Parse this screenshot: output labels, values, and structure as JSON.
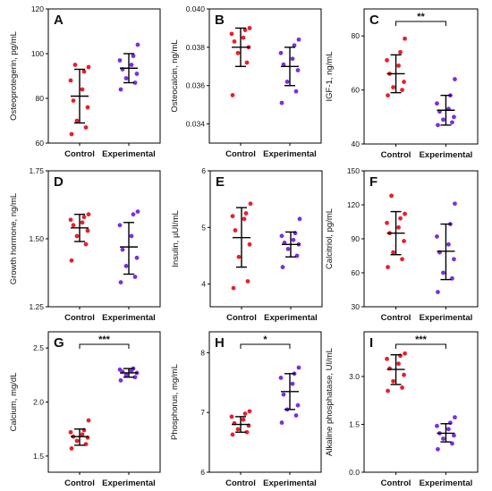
{
  "chart_data": [
    {
      "panel": "A",
      "type": "scatter",
      "ylabel": "Osteoprotegerin, pg/mL",
      "categories": [
        "Control",
        "Experimental"
      ],
      "ylim": [
        60,
        120
      ],
      "yticks": [
        "60",
        "80",
        "100",
        "120"
      ],
      "colors": [
        "#e8202a",
        "#7b2fe0"
      ],
      "groups": [
        {
          "name": "Control",
          "mean": 81,
          "sd_low": 69,
          "sd_high": 93,
          "points": [
            64,
            67,
            70,
            76,
            79,
            84,
            88,
            92,
            94,
            95
          ]
        },
        {
          "name": "Experimental",
          "mean": 93.5,
          "sd_low": 87,
          "sd_high": 100,
          "points": [
            84,
            87,
            89,
            91,
            93,
            95,
            97,
            99,
            104
          ]
        }
      ],
      "significance": ""
    },
    {
      "panel": "B",
      "type": "scatter",
      "ylabel": "Osteocalcin, ng/mL",
      "categories": [
        "Control",
        "Experimental"
      ],
      "ylim": [
        0.033,
        0.04
      ],
      "yticks": [
        "0.034",
        "0.036",
        "0.038",
        "0.040"
      ],
      "colors": [
        "#e8202a",
        "#7b2fe0"
      ],
      "groups": [
        {
          "name": "Control",
          "mean": 0.038,
          "sd_low": 0.037,
          "sd_high": 0.039,
          "points": [
            0.0355,
            0.0372,
            0.0377,
            0.038,
            0.0383,
            0.0385,
            0.0387,
            0.0389,
            0.039
          ]
        },
        {
          "name": "Experimental",
          "mean": 0.037,
          "sd_low": 0.036,
          "sd_high": 0.038,
          "points": [
            0.0351,
            0.0357,
            0.0362,
            0.0368,
            0.0371,
            0.0374,
            0.0377,
            0.0381,
            0.0384
          ]
        }
      ],
      "significance": ""
    },
    {
      "panel": "C",
      "type": "scatter",
      "ylabel": "IGF-1, ng/mL",
      "categories": [
        "Control",
        "Experimental"
      ],
      "ylim": [
        40,
        90
      ],
      "yticks": [
        "40",
        "60",
        "80"
      ],
      "colors": [
        "#e8202a",
        "#7b2fe0"
      ],
      "groups": [
        {
          "name": "Control",
          "mean": 66,
          "sd_low": 59,
          "sd_high": 73,
          "points": [
            58,
            60,
            61,
            63,
            66,
            69,
            71,
            74,
            79
          ]
        },
        {
          "name": "Experimental",
          "mean": 52.5,
          "sd_low": 47,
          "sd_high": 58,
          "points": [
            47,
            48,
            49,
            50,
            52,
            53,
            55,
            58,
            64
          ]
        }
      ],
      "significance": "**"
    },
    {
      "panel": "D",
      "type": "scatter",
      "ylabel": "Growth hormone, ng/mL",
      "categories": [
        "Control",
        "Experimental"
      ],
      "ylim": [
        1.25,
        1.75
      ],
      "yticks": [
        "1.25",
        "1.50",
        "1.75"
      ],
      "colors": [
        "#e8202a",
        "#7b2fe0"
      ],
      "groups": [
        {
          "name": "Control",
          "mean": 1.54,
          "sd_low": 1.49,
          "sd_high": 1.59,
          "points": [
            1.42,
            1.48,
            1.51,
            1.53,
            1.55,
            1.56,
            1.57,
            1.58,
            1.59
          ]
        },
        {
          "name": "Experimental",
          "mean": 1.47,
          "sd_low": 1.37,
          "sd_high": 1.56,
          "points": [
            1.34,
            1.36,
            1.4,
            1.43,
            1.46,
            1.51,
            1.55,
            1.59,
            1.6
          ]
        }
      ],
      "significance": ""
    },
    {
      "panel": "E",
      "type": "scatter",
      "ylabel": "Insulin, µUI/mL",
      "categories": [
        "Control",
        "Experimental"
      ],
      "ylim": [
        3.6,
        6.0
      ],
      "yticks": [
        "4",
        "5",
        "6"
      ],
      "colors": [
        "#e8202a",
        "#7b2fe0"
      ],
      "groups": [
        {
          "name": "Control",
          "mean": 4.82,
          "sd_low": 4.3,
          "sd_high": 5.35,
          "points": [
            3.93,
            4.05,
            4.48,
            4.7,
            4.95,
            5.15,
            5.2,
            5.25,
            5.42
          ]
        },
        {
          "name": "Experimental",
          "mean": 4.7,
          "sd_low": 4.48,
          "sd_high": 4.92,
          "points": [
            4.3,
            4.5,
            4.62,
            4.7,
            4.73,
            4.78,
            4.85,
            4.9,
            5.15
          ]
        }
      ],
      "significance": ""
    },
    {
      "panel": "F",
      "type": "scatter",
      "ylabel": "Calcitriol, pg/mL",
      "categories": [
        "Control",
        "Experimental"
      ],
      "ylim": [
        30,
        150
      ],
      "yticks": [
        "30",
        "60",
        "90",
        "120",
        "150"
      ],
      "colors": [
        "#e8202a",
        "#7b2fe0"
      ],
      "groups": [
        {
          "name": "Control",
          "mean": 95,
          "sd_low": 76,
          "sd_high": 114,
          "points": [
            65,
            72,
            78,
            88,
            95,
            100,
            104,
            108,
            112,
            128
          ]
        },
        {
          "name": "Experimental",
          "mean": 79,
          "sd_low": 54,
          "sd_high": 103,
          "points": [
            43,
            55,
            60,
            72,
            78,
            85,
            92,
            103,
            121
          ]
        }
      ],
      "significance": ""
    },
    {
      "panel": "G",
      "type": "scatter",
      "ylabel": "Calcium, mg/dL",
      "categories": [
        "Control",
        "Experimental"
      ],
      "ylim": [
        1.35,
        2.65
      ],
      "yticks": [
        "1.5",
        "2.0",
        "2.5"
      ],
      "colors": [
        "#e8202a",
        "#7b2fe0"
      ],
      "groups": [
        {
          "name": "Control",
          "mean": 1.68,
          "sd_low": 1.6,
          "sd_high": 1.75,
          "points": [
            1.57,
            1.61,
            1.64,
            1.67,
            1.68,
            1.7,
            1.72,
            1.74,
            1.83
          ]
        },
        {
          "name": "Experimental",
          "mean": 2.27,
          "sd_low": 2.23,
          "sd_high": 2.31,
          "points": [
            2.2,
            2.23,
            2.25,
            2.27,
            2.28,
            2.29,
            2.3,
            2.31
          ]
        }
      ],
      "significance": "***"
    },
    {
      "panel": "H",
      "type": "scatter",
      "ylabel": "Phosphorus, mg/mL",
      "categories": [
        "Control",
        "Experimental"
      ],
      "ylim": [
        6,
        8.35
      ],
      "yticks": [
        "6",
        "7",
        "8"
      ],
      "colors": [
        "#e8202a",
        "#7b2fe0"
      ],
      "groups": [
        {
          "name": "Control",
          "mean": 6.8,
          "sd_low": 6.67,
          "sd_high": 6.93,
          "points": [
            6.63,
            6.67,
            6.72,
            6.78,
            6.82,
            6.88,
            6.93,
            6.98,
            7.02
          ]
        },
        {
          "name": "Experimental",
          "mean": 7.35,
          "sd_low": 7.05,
          "sd_high": 7.65,
          "points": [
            6.83,
            6.95,
            7.05,
            7.12,
            7.3,
            7.48,
            7.58,
            7.65,
            7.75
          ]
        }
      ],
      "significance": "*"
    },
    {
      "panel": "I",
      "type": "scatter",
      "ylabel": "Alkaline phosphatase, UI/mL",
      "categories": [
        "Control",
        "Experimental"
      ],
      "ylim": [
        0.0,
        4.4
      ],
      "yticks": [
        "0.0",
        "1.5",
        "3.0"
      ],
      "colors": [
        "#e8202a",
        "#7b2fe0"
      ],
      "groups": [
        {
          "name": "Control",
          "mean": 3.22,
          "sd_low": 2.75,
          "sd_high": 3.68,
          "points": [
            2.55,
            2.65,
            2.85,
            3.05,
            3.25,
            3.4,
            3.55,
            3.65,
            3.72
          ]
        },
        {
          "name": "Experimental",
          "mean": 1.22,
          "sd_low": 0.95,
          "sd_high": 1.52,
          "points": [
            0.72,
            0.9,
            1.05,
            1.15,
            1.22,
            1.35,
            1.45,
            1.55,
            1.72
          ]
        }
      ],
      "significance": "***"
    }
  ]
}
